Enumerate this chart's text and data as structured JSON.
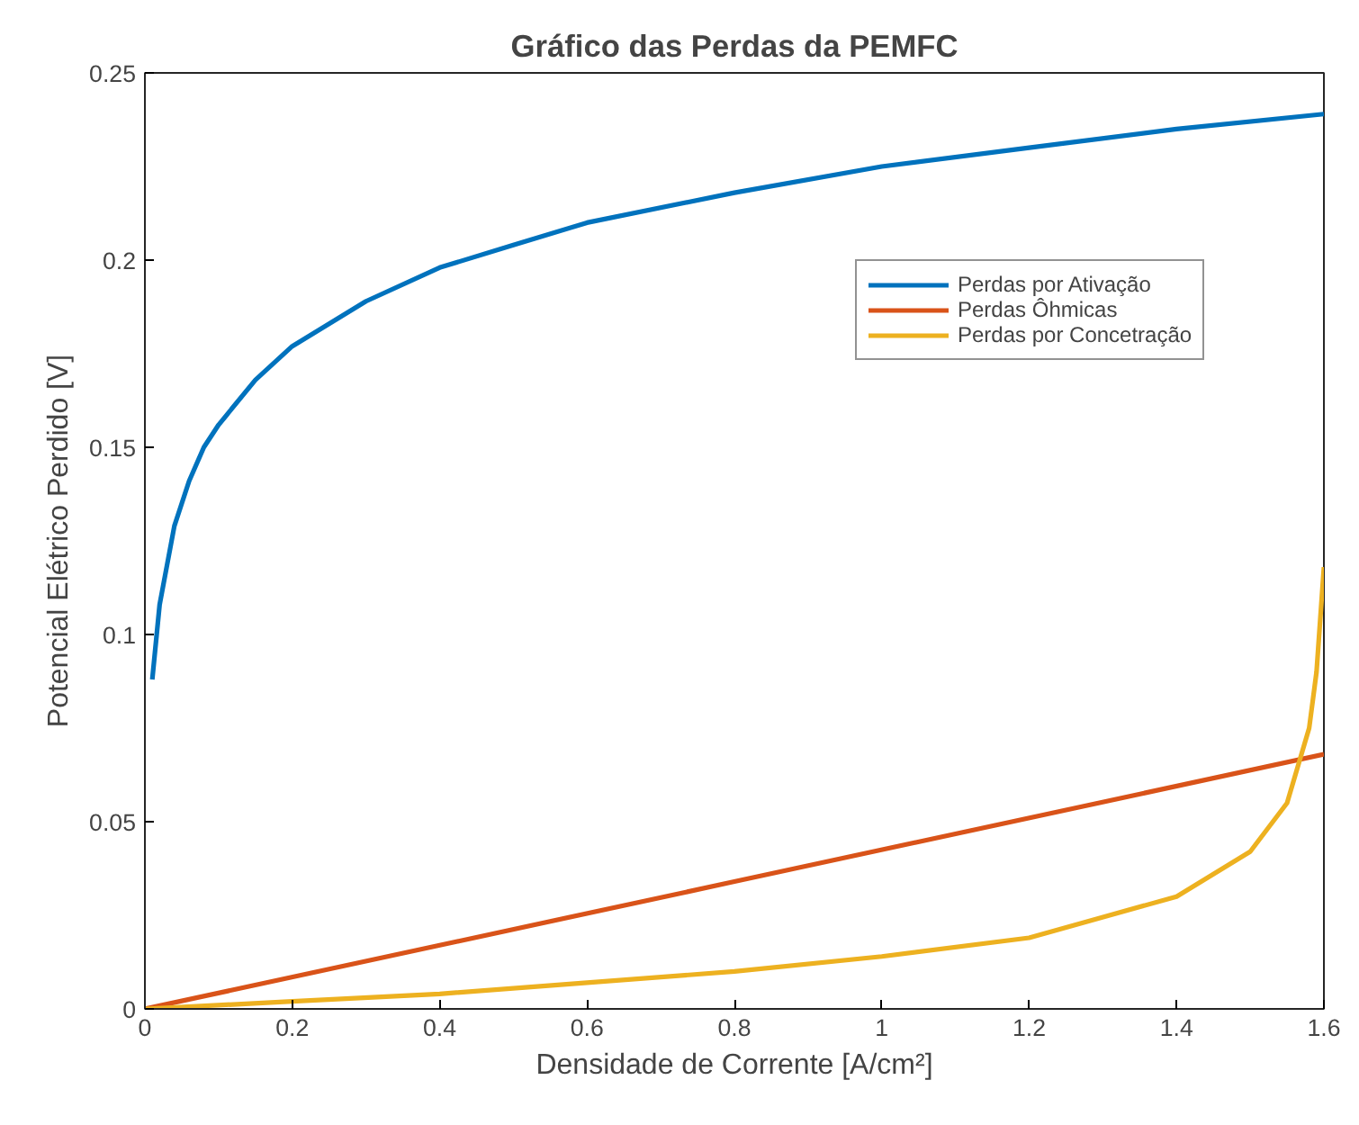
{
  "chart_data": {
    "type": "line",
    "title": "Gráfico das Perdas da PEMFC",
    "xlabel": "Densidade de Corrente [A/cm²]",
    "ylabel": "Potencial Elétrico Perdido [V]",
    "xlim": [
      0,
      1.6
    ],
    "ylim": [
      0,
      0.25
    ],
    "xticks": [
      0,
      0.2,
      0.4,
      0.6,
      0.8,
      1,
      1.2,
      1.4,
      1.6
    ],
    "yticks": [
      0,
      0.05,
      0.1,
      0.15,
      0.2,
      0.25
    ],
    "grid": false,
    "legend": "top right",
    "line_style": "solid",
    "marker": "none",
    "series": [
      {
        "name": "Perdas por Ativação",
        "color": "#0072bd",
        "x": [
          0.01,
          0.02,
          0.04,
          0.06,
          0.08,
          0.1,
          0.15,
          0.2,
          0.3,
          0.4,
          0.5,
          0.6,
          0.8,
          1.0,
          1.2,
          1.4,
          1.6
        ],
        "values": [
          0.088,
          0.108,
          0.129,
          0.141,
          0.15,
          0.156,
          0.168,
          0.177,
          0.189,
          0.198,
          0.204,
          0.21,
          0.218,
          0.225,
          0.23,
          0.235,
          0.239
        ]
      },
      {
        "name": "Perdas Ôhmicas",
        "color": "#d95319",
        "x": [
          0,
          0.8,
          1.6
        ],
        "values": [
          0,
          0.034,
          0.068
        ]
      },
      {
        "name": "Perdas por Concetração",
        "color": "#edb120",
        "x": [
          0,
          0.2,
          0.4,
          0.6,
          0.8,
          1.0,
          1.2,
          1.4,
          1.5,
          1.55,
          1.58,
          1.59,
          1.6
        ],
        "values": [
          0,
          0.002,
          0.004,
          0.007,
          0.01,
          0.014,
          0.019,
          0.03,
          0.042,
          0.055,
          0.075,
          0.09,
          0.118
        ]
      }
    ]
  }
}
